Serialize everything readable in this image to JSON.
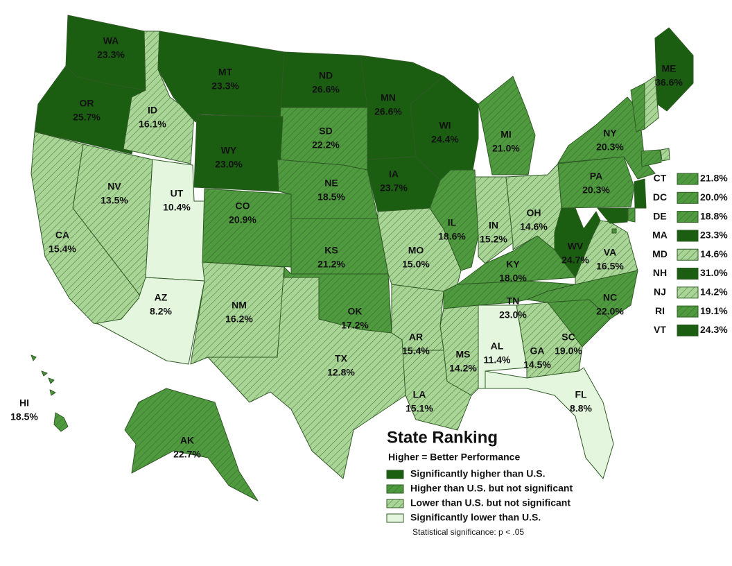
{
  "chart_data": {
    "type": "choropleth",
    "title": "State Ranking",
    "subtitle": "Higher = Better Performance",
    "note": "Statistical significance: p < .05",
    "legend": {
      "items": [
        {
          "name": "Significantly higher than U.S.",
          "color": "#1b5e12",
          "hatched": false
        },
        {
          "name": "Higher than U.S. but not significant",
          "color": "#4f9a3f",
          "hatched": true
        },
        {
          "name": "Lower than U.S. but not significant",
          "color": "#a9d596",
          "hatched": true
        },
        {
          "name": "Significantly lower than U.S.",
          "color": "#e4f6dd",
          "hatched": false
        }
      ]
    },
    "categories": [
      "WA",
      "OR",
      "ID",
      "MT",
      "ND",
      "MN",
      "WI",
      "MI",
      "NY",
      "ME",
      "SD",
      "WY",
      "IA",
      "NE",
      "NV",
      "UT",
      "CA",
      "CO",
      "KS",
      "MO",
      "IL",
      "IN",
      "OH",
      "PA",
      "WV",
      "VA",
      "KY",
      "TN",
      "NC",
      "SC",
      "GA",
      "AL",
      "MS",
      "LA",
      "AR",
      "OK",
      "TX",
      "NM",
      "AZ",
      "FL",
      "AK",
      "HI",
      "CT",
      "DC",
      "DE",
      "MA",
      "MD",
      "NH",
      "NJ",
      "RI",
      "VT"
    ],
    "values": [
      23.3,
      25.7,
      16.1,
      23.3,
      26.6,
      26.6,
      24.4,
      21.0,
      20.3,
      36.6,
      22.2,
      23.0,
      23.7,
      18.5,
      13.5,
      10.4,
      15.4,
      20.9,
      21.2,
      15.0,
      18.6,
      15.2,
      14.6,
      20.3,
      24.7,
      16.5,
      18.0,
      23.0,
      22.0,
      19.0,
      14.5,
      11.4,
      14.2,
      15.1,
      15.4,
      17.2,
      12.8,
      16.2,
      8.2,
      8.8,
      22.7,
      18.5,
      21.8,
      20.0,
      18.8,
      23.3,
      14.6,
      31.0,
      14.2,
      19.1,
      24.3
    ],
    "value_labels": [
      "23.3%",
      "25.7%",
      "16.1%",
      "23.3%",
      "26.6%",
      "26.6%",
      "24.4%",
      "21.0%",
      "20.3%",
      "36.6%",
      "22.2%",
      "23.0%",
      "23.7%",
      "18.5%",
      "13.5%",
      "10.4%",
      "15.4%",
      "20.9%",
      "21.2%",
      "15.0%",
      "18.6%",
      "15.2%",
      "14.6%",
      "20.3%",
      "24.7%",
      "16.5%",
      "18.0%",
      "23.0%",
      "22.0%",
      "19.0%",
      "14.5%",
      "11.4%",
      "14.2%",
      "15.1%",
      "15.4%",
      "17.2%",
      "12.8%",
      "16.2%",
      "8.2%",
      "8.8%",
      "22.7%",
      "18.5%",
      "21.8%",
      "20.0%",
      "18.8%",
      "23.3%",
      "14.6%",
      "31.0%",
      "14.2%",
      "19.1%",
      "24.3%"
    ],
    "colors": [
      "#1b5e12",
      "#1b5e12",
      "#a9d596",
      "#1b5e12",
      "#1b5e12",
      "#1b5e12",
      "#1b5e12",
      "#4f9a3f",
      "#4f9a3f",
      "#1b5e12",
      "#4f9a3f",
      "#1b5e12",
      "#1b5e12",
      "#4f9a3f",
      "#a9d596",
      "#e4f6dd",
      "#a9d596",
      "#4f9a3f",
      "#4f9a3f",
      "#a9d596",
      "#4f9a3f",
      "#a9d596",
      "#a9d596",
      "#4f9a3f",
      "#1b5e12",
      "#a9d596",
      "#4f9a3f",
      "#4f9a3f",
      "#4f9a3f",
      "#4f9a3f",
      "#a9d596",
      "#e4f6dd",
      "#a9d596",
      "#a9d596",
      "#a9d596",
      "#4f9a3f",
      "#a9d596",
      "#a9d596",
      "#e4f6dd",
      "#e4f6dd",
      "#4f9a3f",
      "#4f9a3f",
      "#4f9a3f",
      "#4f9a3f",
      "#4f9a3f",
      "#1b5e12",
      "#a9d596",
      "#1b5e12",
      "#a9d596",
      "#4f9a3f",
      "#1b5e12"
    ]
  }
}
